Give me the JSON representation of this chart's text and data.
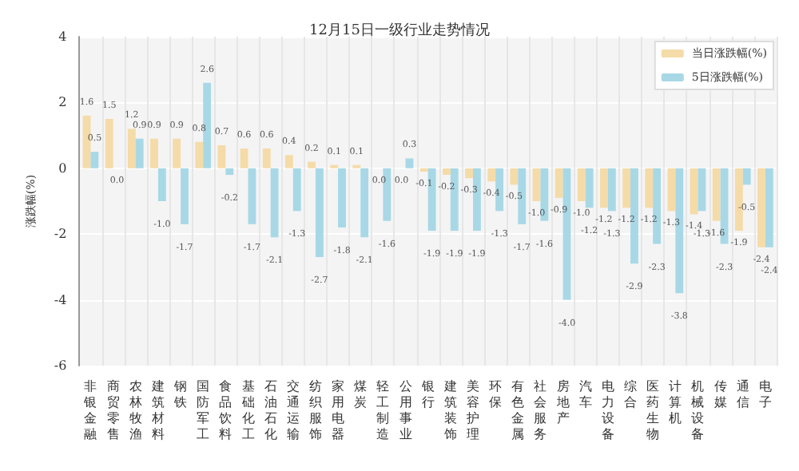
{
  "chart_data": {
    "type": "bar",
    "title": "12月15日一级行业走势情况",
    "ylabel": "涨跌幅(%)",
    "categories": [
      "非银金融",
      "商贸零售",
      "农林牧渔",
      "建筑材料",
      "钢铁",
      "国防军工",
      "食品饮料",
      "基础化工",
      "石油石化",
      "交通运输",
      "纺织服饰",
      "家用电器",
      "煤炭",
      "轻工制造",
      "公用事业",
      "银行",
      "建筑装饰",
      "美容护理",
      "环保",
      "有色金属",
      "社会服务",
      "房地产",
      "汽车",
      "电力设备",
      "综合",
      "医药生物",
      "计算机",
      "机械设备",
      "传媒",
      "通信",
      "电子"
    ],
    "series": [
      {
        "name": "当日涨跌幅(%)",
        "color": "#f5dba8",
        "values": [
          1.6,
          1.5,
          1.2,
          0.9,
          0.9,
          0.8,
          0.7,
          0.6,
          0.6,
          0.4,
          0.2,
          0.1,
          0.1,
          0.0,
          0.0,
          -0.1,
          -0.2,
          -0.3,
          -0.4,
          -0.5,
          -1.0,
          -0.9,
          -1.0,
          -1.2,
          -1.2,
          -1.2,
          -1.3,
          -1.4,
          -1.6,
          -1.9,
          -2.4
        ],
        "value_labels": [
          "1.6",
          "1.5",
          "1.2",
          "0.9",
          "0.9",
          "0.8",
          "0.7",
          "0.6",
          "0.6",
          "0.4",
          "0.2",
          "0.1",
          "0.1",
          "0.0",
          "0.0",
          "-0.1",
          "-0.2",
          "-0.3",
          "-0.4",
          "-0.5",
          "-1.0",
          "-0.9",
          "-1.0",
          "-1.2",
          "-1.2",
          "-1.2",
          "-1.3",
          "-1.4",
          "-1.6",
          "-1.9",
          "-2.4"
        ]
      },
      {
        "name": "5日涨跌幅(%)",
        "color": "#a8d8e6",
        "values": [
          0.5,
          0.0,
          0.9,
          -1.0,
          -1.7,
          2.6,
          -0.2,
          -1.7,
          -2.1,
          -1.3,
          -2.7,
          -1.8,
          -2.1,
          -1.6,
          0.3,
          -1.9,
          -1.9,
          -1.9,
          -1.3,
          -1.7,
          -1.6,
          -4.0,
          -1.2,
          -1.3,
          -2.9,
          -2.3,
          -3.8,
          -1.3,
          -2.3,
          -0.5,
          -2.4
        ],
        "value_labels": [
          "0.5",
          "0.0",
          "0.9",
          "-1.0",
          "-1.7",
          "2.6",
          "-0.2",
          "-1.7",
          "-2.1",
          "-1.3",
          "-2.7",
          "-1.8",
          "-2.1",
          "-1.6",
          "0.3",
          "-1.9",
          "-1.9",
          "-1.9",
          "-1.3",
          "-1.7",
          "-1.6",
          "-4.0",
          "-1.2",
          "-1.3",
          "-2.9",
          "-2.3",
          "-3.8",
          "-1.3",
          "-2.3",
          "-0.5",
          "-2.4"
        ]
      }
    ],
    "ylim": [
      -6,
      4
    ],
    "yticks": [
      -6,
      -4,
      -2,
      0,
      2,
      4
    ],
    "grid": true,
    "legend": "top right"
  }
}
